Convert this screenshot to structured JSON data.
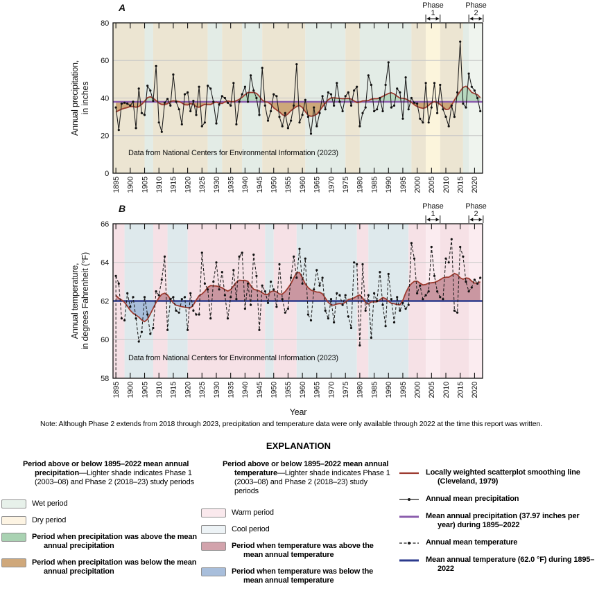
{
  "figure": {
    "x_axis_title": "Year",
    "note": "Note: Although Phase 2 extends from 2018 through 2023, precipitation and temperature data were only available through 2022 at the time this report was written."
  },
  "chart_data": [
    {
      "type": "line",
      "panel": "A",
      "series_name": "Annual mean precipitation",
      "smooth_name": "Locally weighted scatterplot smoothing line (Cleveland, 1979)",
      "mean_name": "Mean annual precipitation (37.97 inches per year) during 1895–2022",
      "ylabel_line1": "Annual precipitation,",
      "ylabel_line2": "in inches",
      "xlabel": "Year",
      "ylim": [
        0,
        80
      ],
      "yticks": [
        0,
        20,
        40,
        60,
        80
      ],
      "gridlines": [
        20,
        40,
        60
      ],
      "xlim": [
        1894,
        2022.8
      ],
      "xtick_start": 1895,
      "xtick_step": 5,
      "xtick_end": 2020,
      "mean": 37.97,
      "x_start_year": 1895,
      "line_style": "solid-dots",
      "annotation": "Data from National Centers for Environmental Information (2023)",
      "values": [
        35,
        23,
        37,
        37.5,
        37,
        36,
        38,
        24,
        45,
        32,
        31,
        46.5,
        44,
        38.5,
        57,
        27,
        22,
        37.5,
        39.5,
        36,
        52.5,
        38,
        34,
        26,
        42,
        43,
        33,
        38.5,
        31,
        46,
        25,
        27,
        46.5,
        45,
        38,
        26.5,
        36.5,
        41,
        40,
        37.5,
        36,
        48,
        26,
        38,
        42,
        46,
        38,
        52,
        44,
        40,
        31,
        56,
        36,
        28,
        33,
        42,
        41,
        30,
        25,
        32,
        24,
        28,
        36,
        58,
        27,
        31,
        39,
        30,
        21,
        35,
        25,
        32,
        41,
        34,
        43,
        42,
        36,
        48,
        38,
        33,
        41,
        43,
        36,
        44,
        46,
        25,
        32,
        35,
        52,
        47,
        33,
        34,
        40,
        33,
        47,
        59,
        35,
        36,
        45,
        43,
        29,
        51,
        34,
        40,
        37.5,
        37,
        29,
        27,
        48,
        27,
        35,
        48,
        32,
        47,
        34,
        30,
        25,
        36,
        30,
        43,
        70,
        37,
        35,
        53,
        46,
        44,
        40,
        33
      ],
      "colors": {
        "annual": "#1a1a1a",
        "smooth": "#9d3b30",
        "mean": "#8b5ead",
        "fill_above": "#b8d8bf",
        "fill_below": "#cda87a"
      },
      "band_colors": {
        "dry": "#ece5d2",
        "wet": "#e3ece6",
        "dry-light": "#fcf5dc",
        "wet-light": "#eff4ee"
      },
      "bands": [
        {
          "from": 1894,
          "to": 1905,
          "kind": "dry"
        },
        {
          "from": 1905,
          "to": 1908,
          "kind": "wet"
        },
        {
          "from": 1908,
          "to": 1927,
          "kind": "dry"
        },
        {
          "from": 1927,
          "to": 1932,
          "kind": "wet"
        },
        {
          "from": 1932,
          "to": 1939,
          "kind": "dry"
        },
        {
          "from": 1939,
          "to": 1946,
          "kind": "wet"
        },
        {
          "from": 1946,
          "to": 1961,
          "kind": "dry"
        },
        {
          "from": 1961,
          "to": 1975,
          "kind": "wet"
        },
        {
          "from": 1975,
          "to": 1980,
          "kind": "dry"
        },
        {
          "from": 1980,
          "to": 1998,
          "kind": "wet"
        },
        {
          "from": 1998,
          "to": 2003,
          "kind": "dry"
        },
        {
          "from": 2003,
          "to": 2008,
          "kind": "dry-light"
        },
        {
          "from": 2008,
          "to": 2016,
          "kind": "dry"
        },
        {
          "from": 2016,
          "to": 2018,
          "kind": "wet"
        },
        {
          "from": 2018,
          "to": 2022.8,
          "kind": "wet-light"
        }
      ],
      "phases": [
        {
          "label": "Phase",
          "num": "1",
          "from": 2003,
          "to": 2008
        },
        {
          "label": "Phase",
          "num": "2",
          "from": 2018,
          "to": 2023
        }
      ]
    },
    {
      "type": "line",
      "panel": "B",
      "series_name": "Annual mean temperature",
      "smooth_name": "Locally weighted scatterplot smoothing line (Cleveland, 1979)",
      "mean_name": "Mean annual temperature (62.0 °F) during 1895–2022",
      "ylabel_line1": "Annual temperature,",
      "ylabel_line2": "in degrees Fahrenheit (°F)",
      "xlabel": "Year",
      "ylim": [
        58,
        66
      ],
      "yticks": [
        58,
        60,
        62,
        64,
        66
      ],
      "gridlines": [
        60,
        62,
        64
      ],
      "xlim": [
        1894,
        2022.8
      ],
      "xtick_start": 1895,
      "xtick_step": 5,
      "xtick_end": 2020,
      "mean": 62.0,
      "x_start_year": 1895,
      "line_style": "dashed-dots",
      "start_drop": true,
      "annotation": "Data from National Centers for Environmental Information (2023)",
      "values": [
        63.3,
        62.9,
        61.1,
        61.0,
        62.4,
        61.7,
        62.2,
        61.1,
        59.9,
        60.4,
        62.2,
        61.3,
        60.3,
        60.6,
        62.5,
        62.3,
        63.1,
        64.3,
        60.5,
        62.1,
        62.2,
        61.5,
        61.4,
        62.1,
        62.2,
        60.5,
        62.4,
        61.5,
        61.3,
        61.3,
        64.5,
        62.9,
        62.6,
        61.1,
        63.0,
        64.0,
        62.6,
        63.5,
        62.3,
        61.1,
        62.2,
        63.6,
        62.1,
        64.3,
        64.5,
        61.6,
        62.9,
        61.8,
        64.4,
        63.3,
        60.5,
        62.8,
        62.5,
        61.9,
        63.0,
        62.6,
        61.7,
        63.9,
        62.1,
        61.4,
        61.6,
        63.2,
        64.3,
        63.2,
        64.7,
        62.9,
        64.2,
        61.3,
        61.0,
        62.6,
        63.6,
        62.8,
        63.2,
        61.5,
        61.1,
        62.1,
        60.9,
        62.4,
        62.3,
        61.8,
        62.3,
        61.2,
        60.6,
        64.0,
        63.9,
        59.7,
        63.9,
        61.5,
        62.3,
        60.1,
        62.4,
        62.0,
        63.5,
        61.8,
        60.7,
        63.4,
        62.1,
        60.9,
        62.2,
        61.5,
        61.9,
        61.6,
        61.8,
        65.0,
        64.2,
        62.4,
        62.8,
        62.1,
        62.3,
        62.5,
        64.8,
        63.3,
        62.5,
        62.2,
        62.1,
        64.2,
        64.0,
        65.2,
        61.5,
        61.4,
        64.8,
        64.3,
        63.0,
        62.5,
        62.7,
        63.1,
        62.9,
        63.2
      ],
      "colors": {
        "annual": "#1a1a1a",
        "smooth": "#9d3b30",
        "mean": "#2b3a8c",
        "fill_above": "#ca97a1",
        "fill_below": "#a9bfdb"
      },
      "band_colors": {
        "warm": "#f6e1e6",
        "cool": "#dee9ec",
        "warm-light": "#fbecf0"
      },
      "bands": [
        {
          "from": 1894,
          "to": 1898,
          "kind": "warm"
        },
        {
          "from": 1898,
          "to": 1908,
          "kind": "cool"
        },
        {
          "from": 1908,
          "to": 1913,
          "kind": "warm"
        },
        {
          "from": 1913,
          "to": 1920,
          "kind": "cool"
        },
        {
          "from": 1920,
          "to": 1947,
          "kind": "warm"
        },
        {
          "from": 1947,
          "to": 1950,
          "kind": "cool"
        },
        {
          "from": 1950,
          "to": 1958,
          "kind": "warm"
        },
        {
          "from": 1958,
          "to": 1979,
          "kind": "cool"
        },
        {
          "from": 1979,
          "to": 1983,
          "kind": "warm"
        },
        {
          "from": 1983,
          "to": 1997,
          "kind": "cool"
        },
        {
          "from": 1997,
          "to": 2003,
          "kind": "warm"
        },
        {
          "from": 2003,
          "to": 2008,
          "kind": "warm-light"
        },
        {
          "from": 2008,
          "to": 2018,
          "kind": "warm"
        },
        {
          "from": 2018,
          "to": 2022.8,
          "kind": "warm-light"
        }
      ],
      "phases": [
        {
          "label": "Phase",
          "num": "1",
          "from": 2003,
          "to": 2008
        },
        {
          "label": "Phase",
          "num": "2",
          "from": 2018,
          "to": 2023
        }
      ]
    }
  ],
  "legend": {
    "title": "EXPLANATION",
    "columns": [
      {
        "header_bold": "Period above or below 1895–2022 mean annual precipitation",
        "header_rest": "—Lighter shade indicates Phase 1 (2003–08) and Phase 2 (2018–23) study periods",
        "items": [
          {
            "swatch": "#e7f1ea",
            "label": "Wet period",
            "bold": false
          },
          {
            "swatch": "#fdf4e3",
            "label": "Dry period",
            "bold": false
          },
          {
            "swatch": "#a9d2b2",
            "label": "Period when precipitation was above the mean annual precipitation",
            "bold": true
          },
          {
            "swatch": "#cfa87b",
            "label": "Period when precipitation was below the mean annual precipitation",
            "bold": true
          }
        ]
      },
      {
        "header_bold": "Period above or below 1895–2022 mean annual temperature",
        "header_rest": "—Lighter shade indicates Phase 1 (2003–08) and Phase 2 (2018–23) study periods",
        "items": [
          {
            "swatch": "#fae9ed",
            "label": "Warm period",
            "bold": false
          },
          {
            "swatch": "#edf3f6",
            "label": "Cool period",
            "bold": false
          },
          {
            "swatch": "#d2a3ac",
            "label": "Period when temperature was above the mean annual temperature",
            "bold": true
          },
          {
            "swatch": "#a8bedb",
            "label": "Period when temperature was below the mean annual temperature",
            "bold": true
          }
        ]
      },
      {
        "items": [
          {
            "symbol": "line",
            "color": "#9d3b30",
            "width": 2.2,
            "label": "Locally weighted scatterplot smoothing line (Cleveland, 1979)",
            "bold": true
          },
          {
            "symbol": "line-dot",
            "color": "#1a1a1a",
            "width": 1.3,
            "label": "Annual mean precipitation",
            "bold": true
          },
          {
            "symbol": "line",
            "color": "#8b5ead",
            "width": 3,
            "label": "Mean annual precipitation (37.97 inches per year) during 1895–2022",
            "bold": true
          },
          {
            "symbol": "dash-dot",
            "color": "#1a1a1a",
            "width": 1.3,
            "label": "Annual mean temperature",
            "bold": true
          },
          {
            "symbol": "line",
            "color": "#2b3a8c",
            "width": 3,
            "label": "Mean annual temperature (62.0 °F) during 1895–2022",
            "bold": true
          }
        ]
      }
    ]
  }
}
